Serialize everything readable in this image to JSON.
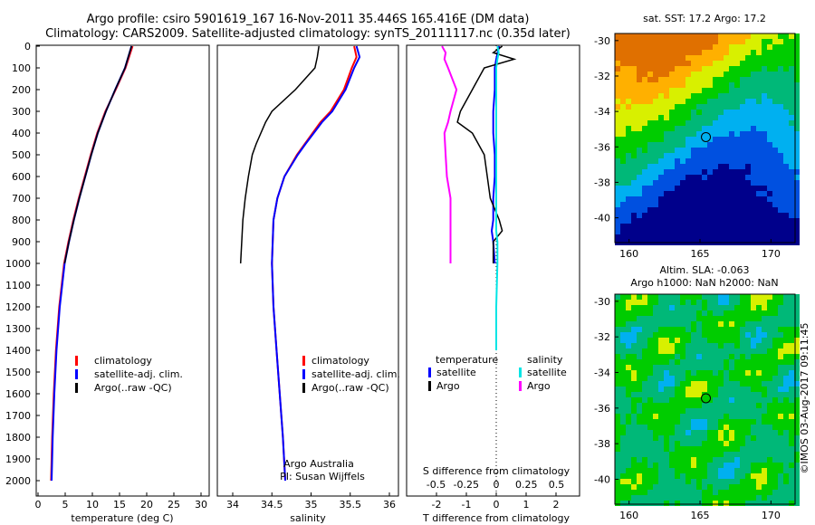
{
  "title_line1": "Argo profile: csiro 5901619_167 16-Nov-2011 35.446S 165.416E (DM data)",
  "title_line2": "Climatology: CARS2009. Satellite-adjusted climatology: synTS_20111117.nc (0.35d later)",
  "colors": {
    "climatology": "#ff0000",
    "satellite": "#0000ff",
    "argo": "#000000",
    "sal_satellite": "#00e5e5",
    "sal_argo": "#ff00ff"
  },
  "chart_data": [
    {
      "type": "line",
      "name": "temperature",
      "xlabel": "temperature (deg C)",
      "xlim": [
        -1,
        31
      ],
      "ylim": [
        0,
        2050
      ],
      "xticks": [
        "0",
        "5",
        "10",
        "15",
        "20",
        "25",
        "30"
      ],
      "yticks": [
        "0",
        "100",
        "200",
        "300",
        "400",
        "500",
        "600",
        "700",
        "800",
        "900",
        "1000",
        "1100",
        "1200",
        "1300",
        "1400",
        "1500",
        "1600",
        "1700",
        "1800",
        "1900",
        "2000"
      ],
      "legend": [
        "climatology",
        "satellite-adj. clim.",
        "Argo(..raw -QC)"
      ],
      "depth": [
        0,
        100,
        200,
        300,
        400,
        500,
        600,
        700,
        800,
        900,
        1000,
        1200,
        1400,
        1600,
        1800,
        2000
      ],
      "series": [
        {
          "name": "climatology",
          "values": [
            17.4,
            16.1,
            14.3,
            12.4,
            10.9,
            9.7,
            8.6,
            7.5,
            6.5,
            5.6,
            4.8,
            3.9,
            3.3,
            2.9,
            2.6,
            2.4
          ]
        },
        {
          "name": "satellite-adj. clim.",
          "values": [
            17.2,
            16.0,
            14.2,
            12.5,
            11.0,
            9.8,
            8.7,
            7.6,
            6.6,
            5.7,
            4.9,
            4.0,
            3.4,
            3.0,
            2.7,
            2.5
          ]
        },
        {
          "name": "Argo",
          "values": [
            17.2,
            16.0,
            14.2,
            12.5,
            11.0,
            9.8,
            8.7,
            7.6,
            6.6,
            5.7,
            4.9,
            null,
            null,
            null,
            null,
            null
          ]
        }
      ]
    },
    {
      "type": "line",
      "name": "salinity",
      "xlabel": "salinity",
      "xlim": [
        33.8,
        36.2
      ],
      "ylim": [
        0,
        2050
      ],
      "xticks": [
        "34",
        "34.5",
        "35",
        "35.5",
        "36"
      ],
      "legend": [
        "climatology",
        "satellite-adj. clim.",
        "Argo(..raw -QC)"
      ],
      "annotation": [
        "Argo Australia",
        "PI: Susan Wijffels"
      ],
      "depth": [
        0,
        50,
        100,
        200,
        300,
        350,
        450,
        500,
        600,
        700,
        800,
        1000,
        1200,
        1400,
        1600,
        1800,
        2000
      ],
      "series": [
        {
          "name": "climatology",
          "values": [
            35.55,
            35.58,
            35.52,
            35.42,
            35.25,
            35.12,
            34.92,
            34.82,
            34.66,
            34.57,
            34.52,
            34.5,
            34.52,
            34.56,
            34.6,
            34.64,
            34.67
          ]
        },
        {
          "name": "satellite-adj. clim.",
          "values": [
            35.58,
            35.62,
            35.55,
            35.44,
            35.27,
            35.14,
            34.93,
            34.83,
            34.66,
            34.57,
            34.52,
            34.5,
            34.52,
            34.56,
            34.6,
            34.64,
            34.67
          ]
        },
        {
          "name": "Argo",
          "values": [
            35.1,
            35.08,
            35.05,
            34.8,
            34.5,
            34.42,
            34.3,
            34.25,
            34.2,
            34.16,
            34.13,
            34.1,
            null,
            null,
            null,
            null,
            null
          ]
        }
      ]
    },
    {
      "type": "line",
      "name": "differences",
      "xlabel": "T difference from climatology",
      "x2label": "S difference from climatology",
      "xlim": [
        -2.8,
        2.8
      ],
      "xticks": [
        "-2",
        "-1",
        "0",
        "1",
        "2"
      ],
      "x2ticks": [
        "-0.5",
        "-0.25",
        "0",
        "0.25",
        "0.5"
      ],
      "legend_temperature": {
        "title": "temperature",
        "items": [
          "satellite",
          "Argo"
        ]
      },
      "legend_salinity": {
        "title": "salinity",
        "items": [
          "satellite",
          "Argo"
        ]
      },
      "depth": [
        0,
        30,
        60,
        100,
        200,
        300,
        350,
        400,
        500,
        600,
        700,
        800,
        850,
        900,
        1000,
        1200,
        1400
      ],
      "series": [
        {
          "name": "T satellite",
          "values": [
            0.1,
            0.05,
            0.0,
            -0.05,
            -0.05,
            -0.1,
            -0.1,
            -0.1,
            -0.05,
            -0.05,
            -0.1,
            -0.1,
            -0.15,
            -0.1,
            -0.05,
            null,
            null
          ]
        },
        {
          "name": "T Argo",
          "values": [
            0.2,
            -0.1,
            0.6,
            -0.4,
            -0.8,
            -1.2,
            -1.3,
            -0.8,
            -0.4,
            -0.3,
            -0.2,
            0.1,
            0.2,
            -0.1,
            -0.1,
            null,
            null
          ]
        },
        {
          "name": "S satellite",
          "values": [
            0.01,
            0.02,
            0.01,
            0.0,
            0.0,
            0.0,
            0.0,
            0.0,
            0.0,
            0.0,
            0.0,
            0.0,
            0.0,
            0.01,
            0.01,
            0.0,
            0.0
          ]
        },
        {
          "name": "S Argo",
          "values": [
            -0.45,
            -0.42,
            -0.43,
            -0.4,
            -0.33,
            -0.38,
            -0.4,
            -0.43,
            -0.42,
            -0.41,
            -0.38,
            -0.38,
            -0.38,
            -0.38,
            -0.38,
            null,
            null
          ]
        }
      ]
    }
  ],
  "maps": [
    {
      "title": "sat. SST: 17.2 Argo: 17.2",
      "xticks": [
        "160",
        "165",
        "170"
      ],
      "yticks": [
        "-30",
        "-32",
        "-34",
        "-36",
        "-38",
        "-40"
      ]
    },
    {
      "title_line1": "Altim. SLA: -0.063",
      "title_line2": "Argo h1000: NaN h2000: NaN",
      "xticks": [
        "160",
        "165",
        "170"
      ],
      "yticks": [
        "-30",
        "-32",
        "-34",
        "-36",
        "-38",
        "-40"
      ]
    }
  ],
  "credit": "©IMOS 03-Aug-2017 09:11:45"
}
